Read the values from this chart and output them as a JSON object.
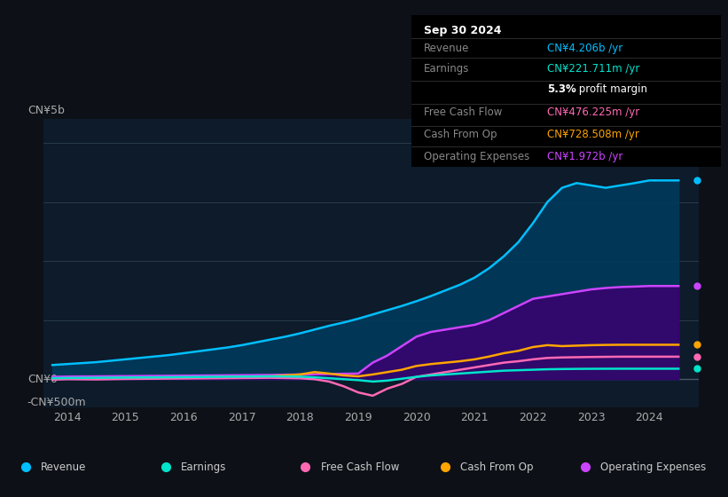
{
  "background_color": "#0d1117",
  "plot_bg_color": "#0d1b2a",
  "y_label_top": "CN¥5b",
  "y_label_zero": "CN¥0",
  "y_label_neg": "-CN¥500m",
  "x_ticks": [
    "2014",
    "2015",
    "2016",
    "2017",
    "2018",
    "2019",
    "2020",
    "2021",
    "2022",
    "2023",
    "2024"
  ],
  "ylim": [
    -600000000,
    5500000000
  ],
  "series": {
    "Revenue": {
      "color": "#00bfff",
      "fill_color": "#003a5c",
      "years": [
        2013.75,
        2014,
        2014.25,
        2014.5,
        2014.75,
        2015,
        2015.25,
        2015.5,
        2015.75,
        2016,
        2016.25,
        2016.5,
        2016.75,
        2017,
        2017.25,
        2017.5,
        2017.75,
        2018,
        2018.25,
        2018.5,
        2018.75,
        2019,
        2019.25,
        2019.5,
        2019.75,
        2020,
        2020.25,
        2020.5,
        2020.75,
        2021,
        2021.25,
        2021.5,
        2021.75,
        2022,
        2022.25,
        2022.5,
        2022.75,
        2023,
        2023.25,
        2023.5,
        2023.75,
        2024,
        2024.25,
        2024.5
      ],
      "values": [
        300000000,
        320000000,
        340000000,
        360000000,
        390000000,
        420000000,
        450000000,
        480000000,
        510000000,
        550000000,
        590000000,
        630000000,
        670000000,
        720000000,
        780000000,
        840000000,
        900000000,
        970000000,
        1050000000,
        1130000000,
        1200000000,
        1280000000,
        1370000000,
        1460000000,
        1550000000,
        1650000000,
        1760000000,
        1880000000,
        2000000000,
        2150000000,
        2350000000,
        2600000000,
        2900000000,
        3300000000,
        3750000000,
        4050000000,
        4150000000,
        4100000000,
        4050000000,
        4100000000,
        4150000000,
        4206000000,
        4206000000,
        4206000000
      ]
    },
    "OperatingExpenses": {
      "color": "#cc44ff",
      "fill_color": "#3a006f",
      "years": [
        2013.75,
        2014,
        2014.5,
        2015,
        2015.5,
        2016,
        2016.5,
        2017,
        2017.5,
        2018,
        2018.5,
        2019,
        2019.25,
        2019.5,
        2019.75,
        2020,
        2020.25,
        2020.5,
        2020.75,
        2021,
        2021.25,
        2021.5,
        2021.75,
        2022,
        2022.25,
        2022.5,
        2022.75,
        2023,
        2023.25,
        2023.5,
        2023.75,
        2024,
        2024.25,
        2024.5
      ],
      "values": [
        50000000,
        55000000,
        60000000,
        65000000,
        70000000,
        75000000,
        80000000,
        85000000,
        90000000,
        100000000,
        110000000,
        120000000,
        350000000,
        500000000,
        700000000,
        900000000,
        1000000000,
        1050000000,
        1100000000,
        1150000000,
        1250000000,
        1400000000,
        1550000000,
        1700000000,
        1750000000,
        1800000000,
        1850000000,
        1900000000,
        1930000000,
        1950000000,
        1960000000,
        1972000000,
        1972000000,
        1972000000
      ]
    },
    "CashFromOp": {
      "color": "#ffa500",
      "years": [
        2013.75,
        2014,
        2014.5,
        2015,
        2015.5,
        2016,
        2016.5,
        2017,
        2017.5,
        2018,
        2018.25,
        2018.5,
        2018.75,
        2019,
        2019.25,
        2019.5,
        2019.75,
        2020,
        2020.25,
        2020.5,
        2020.75,
        2021,
        2021.25,
        2021.5,
        2021.75,
        2022,
        2022.25,
        2022.5,
        2022.75,
        2023,
        2023.25,
        2023.5,
        2023.75,
        2024,
        2024.25,
        2024.5
      ],
      "values": [
        10000000,
        20000000,
        15000000,
        25000000,
        30000000,
        35000000,
        40000000,
        50000000,
        60000000,
        100000000,
        150000000,
        120000000,
        80000000,
        60000000,
        100000000,
        150000000,
        200000000,
        280000000,
        320000000,
        350000000,
        380000000,
        420000000,
        480000000,
        550000000,
        600000000,
        680000000,
        720000000,
        700000000,
        710000000,
        720000000,
        725000000,
        728000000,
        728508000,
        728508000,
        728508000,
        728508000
      ]
    },
    "FreeCashFlow": {
      "color": "#ff69b4",
      "years": [
        2013.75,
        2014,
        2014.5,
        2015,
        2015.5,
        2016,
        2016.5,
        2017,
        2017.5,
        2018,
        2018.25,
        2018.5,
        2018.75,
        2019,
        2019.25,
        2019.5,
        2019.75,
        2020,
        2020.25,
        2020.5,
        2020.75,
        2021,
        2021.25,
        2021.5,
        2021.75,
        2022,
        2022.25,
        2022.5,
        2022.75,
        2023,
        2023.25,
        2023.5,
        2023.75,
        2024,
        2024.25,
        2024.5
      ],
      "values": [
        -10000000,
        0,
        -5000000,
        5000000,
        10000000,
        15000000,
        20000000,
        25000000,
        30000000,
        20000000,
        0,
        -50000000,
        -150000000,
        -280000000,
        -350000000,
        -200000000,
        -100000000,
        50000000,
        100000000,
        150000000,
        200000000,
        250000000,
        300000000,
        350000000,
        380000000,
        420000000,
        450000000,
        460000000,
        465000000,
        470000000,
        473000000,
        476000000,
        476225000,
        476225000,
        476225000,
        476225000
      ]
    },
    "Earnings": {
      "color": "#00e5cc",
      "years": [
        2013.75,
        2014,
        2014.5,
        2015,
        2015.5,
        2016,
        2016.5,
        2017,
        2017.5,
        2018,
        2018.25,
        2018.5,
        2018.75,
        2019,
        2019.25,
        2019.5,
        2019.75,
        2020,
        2020.25,
        2020.5,
        2020.75,
        2021,
        2021.25,
        2021.5,
        2021.75,
        2022,
        2022.25,
        2022.5,
        2022.75,
        2023,
        2023.25,
        2023.5,
        2023.75,
        2024,
        2024.25,
        2024.5
      ],
      "values": [
        20000000,
        25000000,
        30000000,
        35000000,
        40000000,
        45000000,
        50000000,
        55000000,
        60000000,
        55000000,
        40000000,
        20000000,
        0,
        -20000000,
        -50000000,
        -30000000,
        10000000,
        50000000,
        80000000,
        100000000,
        120000000,
        140000000,
        160000000,
        180000000,
        190000000,
        200000000,
        210000000,
        215000000,
        218000000,
        220000000,
        221000000,
        221500000,
        221711000,
        221711000,
        221711000,
        221711000
      ]
    }
  },
  "legend": [
    {
      "label": "Revenue",
      "color": "#00bfff"
    },
    {
      "label": "Earnings",
      "color": "#00e5cc"
    },
    {
      "label": "Free Cash Flow",
      "color": "#ff69b4"
    },
    {
      "label": "Cash From Op",
      "color": "#ffa500"
    },
    {
      "label": "Operating Expenses",
      "color": "#cc44ff"
    }
  ],
  "info_box": {
    "date": "Sep 30 2024",
    "rows": [
      {
        "label": "Revenue",
        "value": "CN¥4.206b /yr",
        "color": "#00bfff"
      },
      {
        "label": "Earnings",
        "value": "CN¥221.711m /yr",
        "color": "#00e5cc"
      },
      {
        "label": "",
        "value": "profit margin",
        "color": "#ffffff",
        "bold": "5.3%"
      },
      {
        "label": "Free Cash Flow",
        "value": "CN¥476.225m /yr",
        "color": "#ff69b4"
      },
      {
        "label": "Cash From Op",
        "value": "CN¥728.508m /yr",
        "color": "#ffa500"
      },
      {
        "label": "Operating Expenses",
        "value": "CN¥1.972b /yr",
        "color": "#cc44ff"
      }
    ]
  }
}
